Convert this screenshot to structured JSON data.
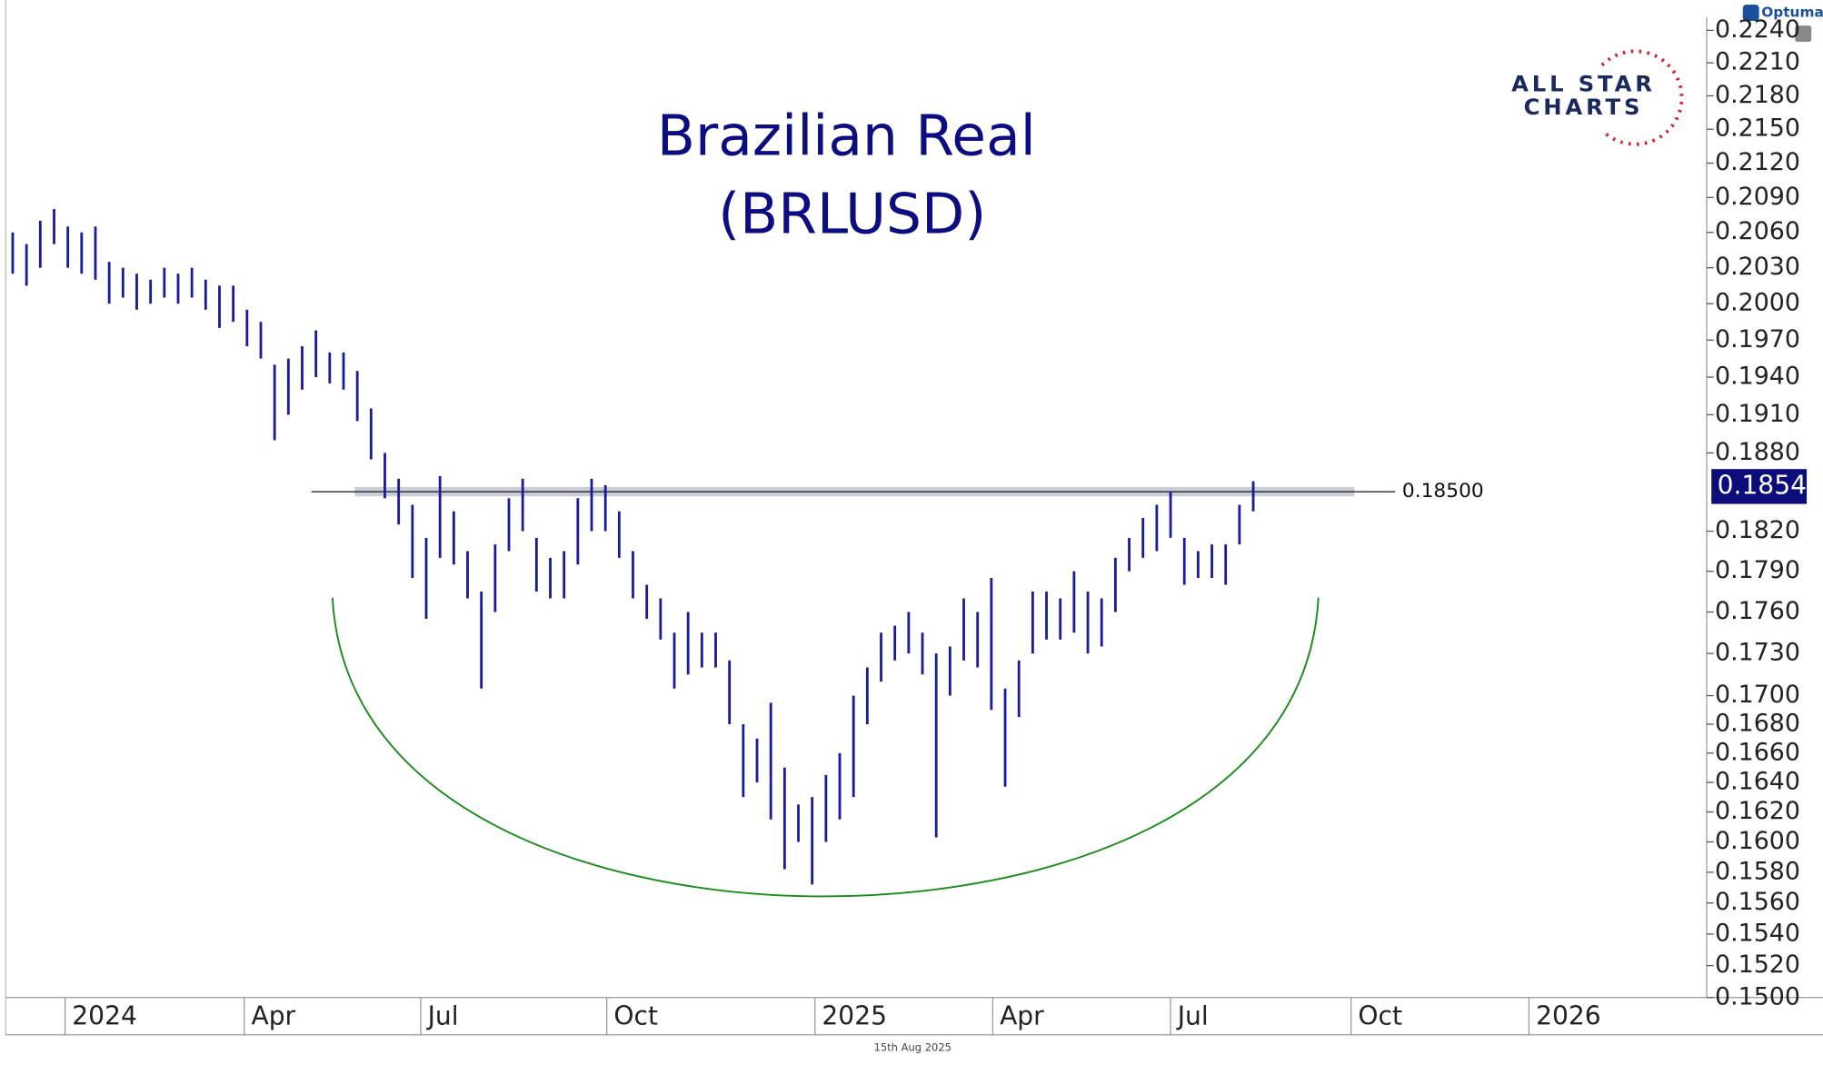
{
  "chart_data": {
    "type": "ohlc",
    "title": [
      "Brazilian Real",
      "(BRLUSD)"
    ],
    "footer": "15th Aug 2025",
    "brand": {
      "vendor": "Optuma",
      "logo": [
        "ALL STAR",
        "CHARTS"
      ]
    },
    "color": "#1a1a9c",
    "log_scale": true,
    "ylim": [
      0.15,
      0.2252
    ],
    "yticks": [
      {
        "value": 0.224,
        "label": "0.2240"
      },
      {
        "value": 0.221,
        "label": "0.2210"
      },
      {
        "value": 0.218,
        "label": "0.2180"
      },
      {
        "value": 0.215,
        "label": "0.2150"
      },
      {
        "value": 0.212,
        "label": "0.2120"
      },
      {
        "value": 0.209,
        "label": "0.2090"
      },
      {
        "value": 0.206,
        "label": "0.2060"
      },
      {
        "value": 0.203,
        "label": "0.2030"
      },
      {
        "value": 0.2,
        "label": "0.2000"
      },
      {
        "value": 0.197,
        "label": "0.1970"
      },
      {
        "value": 0.194,
        "label": "0.1940"
      },
      {
        "value": 0.191,
        "label": "0.1910"
      },
      {
        "value": 0.188,
        "label": "0.1880"
      },
      {
        "value": 0.182,
        "label": "0.1820"
      },
      {
        "value": 0.179,
        "label": "0.1790"
      },
      {
        "value": 0.176,
        "label": "0.1760"
      },
      {
        "value": 0.173,
        "label": "0.1730"
      },
      {
        "value": 0.17,
        "label": "0.1700"
      },
      {
        "value": 0.168,
        "label": "0.1680"
      },
      {
        "value": 0.166,
        "label": "0.1660"
      },
      {
        "value": 0.164,
        "label": "0.1640"
      },
      {
        "value": 0.162,
        "label": "0.1620"
      },
      {
        "value": 0.16,
        "label": "0.1600"
      },
      {
        "value": 0.158,
        "label": "0.1580"
      },
      {
        "value": 0.156,
        "label": "0.1560"
      },
      {
        "value": 0.154,
        "label": "0.1540"
      },
      {
        "value": 0.152,
        "label": "0.1520"
      },
      {
        "value": 0.15,
        "label": "0.1500"
      }
    ],
    "xlim": [
      -0.5,
      122.9
    ],
    "xticks": [
      {
        "value": 3.8,
        "label": "2024"
      },
      {
        "value": 16.8,
        "label": "Apr"
      },
      {
        "value": 29.6,
        "label": "Jul"
      },
      {
        "value": 43.1,
        "label": "Oct"
      },
      {
        "value": 58.2,
        "label": "2025"
      },
      {
        "value": 71.1,
        "label": "Apr"
      },
      {
        "value": 84.0,
        "label": "Jul"
      },
      {
        "value": 97.1,
        "label": "Oct"
      },
      {
        "value": 110.0,
        "label": "2026"
      }
    ],
    "lows": [
      0.2025,
      0.2015,
      0.203,
      0.205,
      0.203,
      0.2025,
      0.202,
      0.2,
      0.2005,
      0.1995,
      0.2,
      0.2005,
      0.2,
      0.2005,
      0.1995,
      0.198,
      0.1985,
      0.1965,
      0.1955,
      0.189,
      0.191,
      0.193,
      0.194,
      0.1935,
      0.193,
      0.1905,
      0.1875,
      0.1845,
      0.1825,
      0.1785,
      0.1755,
      0.18,
      0.1795,
      0.177,
      0.1705,
      0.176,
      0.1805,
      0.182,
      0.1775,
      0.177,
      0.177,
      0.1795,
      0.182,
      0.182,
      0.18,
      0.177,
      0.1755,
      0.174,
      0.1705,
      0.1715,
      0.172,
      0.172,
      0.168,
      0.163,
      0.164,
      0.1615,
      0.1582,
      0.16,
      0.1572,
      0.16,
      0.1615,
      0.163,
      0.168,
      0.171,
      0.1725,
      0.173,
      0.1715,
      0.1603,
      0.17,
      0.1725,
      0.172,
      0.169,
      0.1637,
      0.1685,
      0.173,
      0.174,
      0.174,
      0.1745,
      0.173,
      0.1735,
      0.176,
      0.179,
      0.18,
      0.1805,
      0.1815,
      0.178,
      0.1785,
      0.1785,
      0.178,
      0.181,
      0.1835
    ],
    "highs": [
      0.206,
      0.205,
      0.207,
      0.208,
      0.2065,
      0.206,
      0.2065,
      0.2035,
      0.203,
      0.2025,
      0.202,
      0.203,
      0.2025,
      0.203,
      0.202,
      0.2015,
      0.2015,
      0.1995,
      0.1985,
      0.195,
      0.1955,
      0.1965,
      0.1978,
      0.196,
      0.196,
      0.1945,
      0.1915,
      0.188,
      0.186,
      0.184,
      0.1815,
      0.1862,
      0.1835,
      0.1805,
      0.1775,
      0.181,
      0.1845,
      0.186,
      0.1815,
      0.18,
      0.1805,
      0.1845,
      0.186,
      0.1855,
      0.1835,
      0.1805,
      0.178,
      0.177,
      0.1745,
      0.176,
      0.1745,
      0.1745,
      0.1725,
      0.168,
      0.167,
      0.1695,
      0.165,
      0.1625,
      0.163,
      0.1645,
      0.166,
      0.17,
      0.172,
      0.1745,
      0.175,
      0.176,
      0.1745,
      0.173,
      0.1735,
      0.177,
      0.176,
      0.1785,
      0.1705,
      0.1725,
      0.1775,
      0.1775,
      0.177,
      0.179,
      0.1775,
      0.177,
      0.18,
      0.1815,
      0.183,
      0.184,
      0.185,
      0.1815,
      0.1805,
      0.181,
      0.181,
      0.184,
      0.1858
    ],
    "level": {
      "value": 0.185,
      "label": "0.18500"
    },
    "last_price": {
      "value": 0.1854,
      "label": "0.1854"
    }
  }
}
